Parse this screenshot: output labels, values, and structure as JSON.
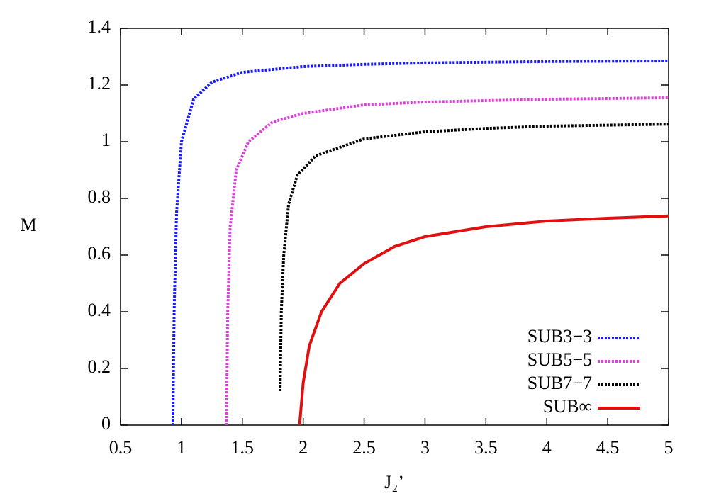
{
  "chart_data": {
    "type": "line",
    "x_label": "J₂’",
    "y_label": "M",
    "xlim": [
      0.5,
      5
    ],
    "ylim": [
      0,
      1.4
    ],
    "xticks": [
      0.5,
      1,
      1.5,
      2,
      2.5,
      3,
      3.5,
      4,
      4.5,
      5
    ],
    "yticks": [
      0,
      0.2,
      0.4,
      0.6,
      0.8,
      1,
      1.2,
      1.4
    ],
    "legend": "lower right",
    "series": [
      {
        "name": "SUB3−3",
        "color": "#1a1aff",
        "style": "dotted",
        "x": [
          0.93,
          0.94,
          0.96,
          1.0,
          1.1,
          1.25,
          1.5,
          2,
          2.5,
          3,
          4,
          5
        ],
        "values": [
          0,
          0.4,
          0.75,
          1.0,
          1.15,
          1.21,
          1.245,
          1.265,
          1.273,
          1.278,
          1.283,
          1.285
        ]
      },
      {
        "name": "SUB5−5",
        "color": "#e040e0",
        "style": "dotted",
        "x": [
          1.37,
          1.38,
          1.4,
          1.45,
          1.55,
          1.75,
          2,
          2.5,
          3,
          4,
          5
        ],
        "values": [
          0,
          0.4,
          0.7,
          0.9,
          1.0,
          1.07,
          1.1,
          1.13,
          1.14,
          1.15,
          1.155
        ]
      },
      {
        "name": "SUB7−7",
        "color": "#000000",
        "style": "dotted",
        "x": [
          1.81,
          1.82,
          1.84,
          1.88,
          1.95,
          2.1,
          2.5,
          3,
          3.5,
          4,
          5
        ],
        "values": [
          0.12,
          0.4,
          0.6,
          0.78,
          0.88,
          0.95,
          1.01,
          1.035,
          1.047,
          1.055,
          1.062
        ]
      },
      {
        "name": "SUB∞",
        "color": "#e01010",
        "style": "solid",
        "x": [
          1.97,
          2.0,
          2.05,
          2.15,
          2.3,
          2.5,
          2.75,
          3,
          3.5,
          4,
          4.5,
          5
        ],
        "values": [
          0,
          0.15,
          0.28,
          0.4,
          0.5,
          0.57,
          0.63,
          0.665,
          0.7,
          0.72,
          0.73,
          0.738
        ]
      }
    ]
  }
}
